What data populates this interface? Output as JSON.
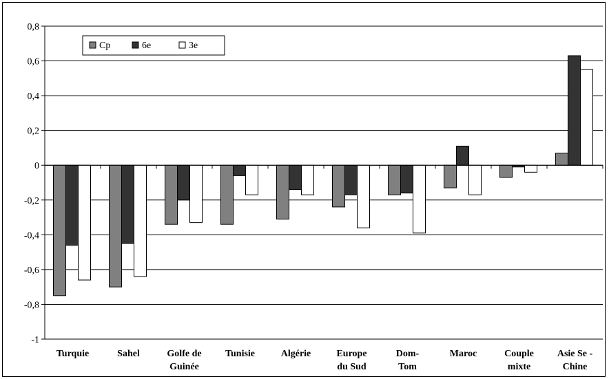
{
  "chart_data": {
    "type": "bar",
    "categories": [
      [
        "Turquie"
      ],
      [
        "Sahel"
      ],
      [
        "Golfe de",
        "Guinée"
      ],
      [
        "Tunisie"
      ],
      [
        "Algérie"
      ],
      [
        "Europe",
        "du Sud"
      ],
      [
        "Dom-",
        "Tom"
      ],
      [
        "Maroc"
      ],
      [
        "Couple",
        "mixte"
      ],
      [
        "Asie Se -",
        "Chine"
      ]
    ],
    "series": [
      {
        "name": "Cp",
        "color": "#808080",
        "values": [
          -0.75,
          -0.7,
          -0.34,
          -0.34,
          -0.31,
          -0.24,
          -0.17,
          -0.13,
          -0.07,
          0.07
        ]
      },
      {
        "name": "6e",
        "color": "#333333",
        "values": [
          -0.46,
          -0.45,
          -0.2,
          -0.06,
          -0.14,
          -0.17,
          -0.16,
          0.11,
          -0.01,
          0.63
        ]
      },
      {
        "name": "3e",
        "color": "#ffffff",
        "values": [
          -0.66,
          -0.64,
          -0.33,
          -0.17,
          -0.17,
          -0.36,
          -0.39,
          -0.17,
          -0.04,
          0.55
        ]
      }
    ],
    "ylim": [
      -1,
      0.8
    ],
    "yticks": [
      "0,8",
      "0,6",
      "0,4",
      "0,2",
      "0",
      "-0,2",
      "-0,4",
      "-0,6",
      "-0,8",
      "-1"
    ],
    "grid": true,
    "legend_position": "top-left"
  }
}
